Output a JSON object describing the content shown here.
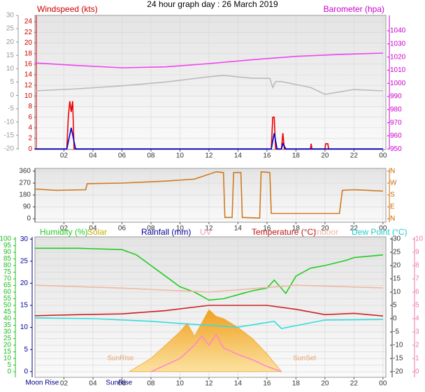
{
  "title": "24 hour graph day : 26 March 2019",
  "chart_data": [
    {
      "type": "line",
      "ylabel": "Windspeed (kts)",
      "y2label": "Barometer (hpa)",
      "xlim": [
        0,
        24.2
      ],
      "xticks": [
        {
          "value": 2,
          "label": "02"
        },
        {
          "value": 4,
          "label": "04"
        },
        {
          "value": 6,
          "label": "06"
        },
        {
          "value": 8,
          "label": "08"
        },
        10,
        12,
        14,
        16,
        18,
        20,
        22,
        {
          "value": 24,
          "label": "00"
        }
      ],
      "ylim": [
        -0.1,
        25.2
      ],
      "yticks": [
        0,
        2,
        4,
        6,
        8,
        10,
        12,
        14,
        16,
        18,
        20,
        22,
        24
      ],
      "ycolor": "#cc0000",
      "y3lim": [
        -20.3,
        30
      ],
      "y3ticks": [
        -20,
        -15,
        -10,
        -5,
        0,
        5,
        10,
        15,
        20,
        25,
        30
      ],
      "y3color": "#999999",
      "y2lim": [
        949.6,
        1051.7
      ],
      "y2ticks": [
        950,
        960,
        970,
        980,
        990,
        1000,
        1010,
        1020,
        1030,
        1040
      ],
      "y2color": "#cc00cc",
      "grid": true,
      "series": [
        {
          "color": "#bbbbbb",
          "axis": "y3",
          "x": [
            0,
            3,
            6,
            9,
            12,
            13,
            15,
            16.2,
            16.4,
            16.6,
            17,
            19,
            20,
            22,
            24
          ],
          "values": [
            1.7,
            2.5,
            3.6,
            5,
            7,
            7.5,
            6.4,
            6.4,
            3,
            5.2,
            5.2,
            3,
            0.4,
            2.2,
            1.7
          ]
        },
        {
          "color": "#ee44ee",
          "axis": "y2",
          "x": [
            0,
            3,
            6,
            9,
            12,
            15,
            18,
            21,
            24
          ],
          "values": [
            1015.5,
            1013.5,
            1011.8,
            1012.5,
            1015,
            1018,
            1020.5,
            1022,
            1023
          ]
        },
        {
          "color": "#ee0000",
          "axis": "y",
          "x": [
            0,
            2.2,
            2.3,
            2.4,
            2.5,
            2.6,
            2.7,
            16.3,
            16.4,
            16.5,
            16.6,
            17,
            17.1,
            17.2,
            19,
            19.05,
            19.1,
            20,
            20.05,
            20.2,
            20.25,
            24
          ],
          "values": [
            0,
            0,
            6,
            9,
            7,
            9,
            0,
            0,
            6,
            6,
            0,
            0,
            3,
            0,
            0,
            1,
            0,
            0,
            1,
            1,
            0,
            0
          ]
        },
        {
          "color": "#0000cc",
          "axis": "y",
          "x": [
            0,
            2.2,
            2.5,
            2.8,
            16.3,
            16.5,
            16.7,
            17,
            17.1,
            17.3,
            24
          ],
          "values": [
            0,
            0,
            4,
            0,
            0,
            3,
            0,
            0,
            1,
            0,
            0
          ]
        }
      ]
    },
    {
      "type": "line",
      "xlim": [
        0,
        24.2
      ],
      "xticks": [
        {
          "value": 2,
          "label": "02"
        },
        {
          "value": 4,
          "label": "04"
        },
        {
          "value": 6,
          "label": "06"
        },
        {
          "value": 8,
          "label": "08"
        },
        10,
        12,
        14,
        16,
        18,
        20,
        22,
        {
          "value": 24,
          "label": "00"
        }
      ],
      "ylim": [
        -26,
        381
      ],
      "yticks": [
        0,
        90,
        180,
        270,
        360
      ],
      "ycolor": "#333333",
      "y2lim": [
        -26,
        381
      ],
      "y2ticks": [
        {
          "value": 0,
          "label": "N"
        },
        {
          "value": 90,
          "label": "E"
        },
        {
          "value": 180,
          "label": "S"
        },
        {
          "value": 270,
          "label": "W"
        },
        {
          "value": 360,
          "label": "N"
        }
      ],
      "y2color": "#cc6600",
      "grid": true,
      "series": [
        {
          "color": "#d07a20",
          "axis": "y",
          "x": [
            0,
            1.5,
            3.5,
            3.6,
            6,
            9,
            11,
            12.5,
            13,
            13.1,
            13.6,
            13.7,
            14.2,
            14.3,
            15.5,
            15.6,
            16.2,
            16.3,
            21,
            21.2,
            22,
            24
          ],
          "values": [
            225,
            215,
            220,
            265,
            270,
            285,
            300,
            355,
            350,
            10,
            10,
            350,
            350,
            10,
            5,
            355,
            350,
            40,
            40,
            215,
            220,
            210
          ]
        }
      ]
    },
    {
      "type": "line",
      "y3label": "Rainfall (mm)",
      "xlim": [
        0,
        24.2
      ],
      "xticks": [
        {
          "value": 2,
          "label": "02"
        },
        {
          "value": 4,
          "label": "04"
        },
        {
          "value": 6,
          "label": "06"
        },
        {
          "value": 8,
          "label": "08"
        },
        10,
        12,
        14,
        16,
        18,
        20,
        22,
        {
          "value": 24,
          "label": "00"
        }
      ],
      "ylim": [
        -4.2,
        101.6
      ],
      "yticks": [
        0,
        5,
        10,
        15,
        20,
        25,
        30,
        35,
        40,
        45,
        50,
        55,
        60,
        65,
        70,
        75,
        80,
        85,
        90,
        95,
        100
      ],
      "ycolor": "#22bb22",
      "y3lim": [
        -1.3,
        30.5
      ],
      "y3ticks": [
        0,
        5,
        10,
        15,
        20,
        25,
        30
      ],
      "y3color": "#000099",
      "y2lim": [
        -22.1,
        30.8
      ],
      "y2ticks": [
        -20,
        -15,
        -10,
        -5,
        0,
        5,
        10,
        15,
        20,
        25,
        30
      ],
      "y2color": "#333333",
      "y4lim": [
        -0.42,
        10.16
      ],
      "y4ticks": [
        0,
        1,
        2,
        3,
        4,
        5,
        6,
        7,
        8,
        9,
        10
      ],
      "y4color": "#ee77aa",
      "grid": true,
      "annotations": [
        {
          "text": "SunRise",
          "x": 5.9
        },
        {
          "text": "SunSet",
          "x": 18.6
        }
      ],
      "footnotes": [
        {
          "text": "Moon Rise",
          "x": 0.5
        },
        {
          "text": "SunRise",
          "x": 5.8
        }
      ],
      "series": [
        {
          "name": "Solar",
          "color": "#f0a830",
          "fill": true,
          "axis": "y3",
          "x": [
            6.5,
            8,
            9,
            10,
            10.5,
            11,
            12,
            12.5,
            13,
            14,
            15,
            16,
            17
          ],
          "values": [
            0,
            3,
            6,
            9,
            11,
            8,
            14,
            12.5,
            12,
            10,
            7.5,
            4,
            0
          ]
        },
        {
          "name": "Humidity (%)",
          "color": "#22cc22",
          "axis": "y",
          "x": [
            0,
            3,
            6,
            7,
            8,
            9,
            10,
            11,
            12,
            13,
            14,
            15,
            16,
            16.5,
            17.3,
            18,
            19,
            20,
            21.5,
            22,
            24
          ],
          "values": [
            93,
            93,
            92,
            88,
            80,
            72,
            64,
            60,
            54,
            55,
            58,
            61,
            63,
            69,
            59,
            72,
            78,
            80,
            84,
            86,
            88
          ]
        },
        {
          "name": "UV",
          "color": "#ff88cc",
          "axis": "y4",
          "x": [
            8,
            10,
            11,
            11.5,
            12,
            12.5,
            13,
            14,
            15,
            16,
            17
          ],
          "values": [
            0,
            1,
            2,
            2.7,
            2,
            2.8,
            1.8,
            1.3,
            0.9,
            0.4,
            0
          ]
        },
        {
          "name": "Temperature (°C)",
          "color": "#cc2222",
          "axis": "y2",
          "x": [
            0,
            3,
            6,
            9,
            12,
            16,
            18,
            20,
            22,
            24
          ],
          "values": [
            1.1,
            1.5,
            1.8,
            3,
            5,
            5,
            3.5,
            1.5,
            2,
            1
          ]
        },
        {
          "name": "Indoor",
          "color": "#f0b8a0",
          "axis": "y2",
          "x": [
            0,
            6,
            12,
            18,
            24
          ],
          "values": [
            12.6,
            11.5,
            10,
            12.6,
            11.6
          ]
        },
        {
          "name": "Dew Point (°C)",
          "color": "#33dddd",
          "axis": "y2",
          "x": [
            0,
            4,
            8,
            10,
            14,
            16.5,
            17,
            20,
            24
          ],
          "values": [
            0.3,
            0,
            -1,
            -1.8,
            -3.2,
            -1,
            -3.7,
            -0.5,
            -0.3
          ]
        }
      ]
    }
  ]
}
